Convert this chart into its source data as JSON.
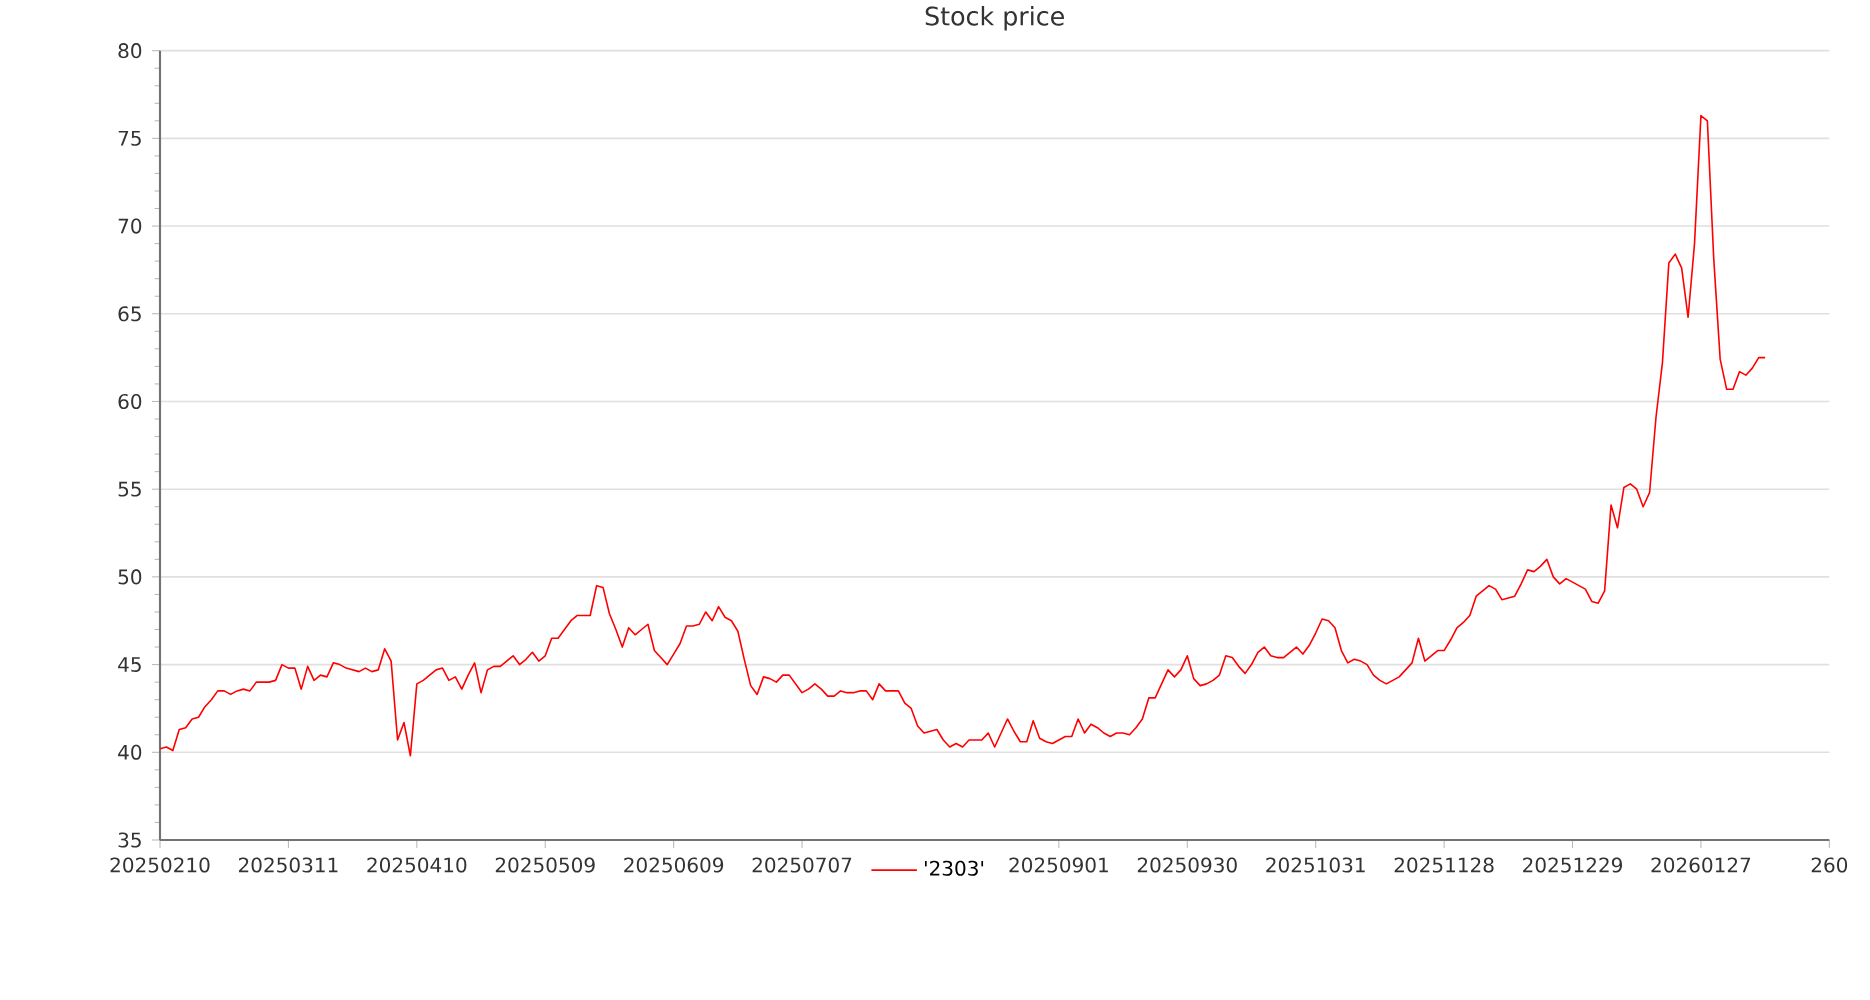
{
  "chart_data": {
    "type": "line",
    "title": "Stock price",
    "categories": [
      "20250210",
      null,
      null,
      null,
      null,
      null,
      null,
      null,
      null,
      null,
      null,
      null,
      null,
      null,
      null,
      null,
      null,
      null,
      null,
      null,
      "20250311",
      null,
      null,
      null,
      null,
      null,
      null,
      null,
      null,
      null,
      null,
      null,
      null,
      null,
      null,
      null,
      null,
      null,
      null,
      null,
      "20250410",
      null,
      null,
      null,
      null,
      null,
      null,
      null,
      null,
      null,
      null,
      null,
      null,
      null,
      null,
      null,
      null,
      null,
      null,
      null,
      "20250509",
      null,
      null,
      null,
      null,
      null,
      null,
      null,
      null,
      null,
      null,
      null,
      null,
      null,
      null,
      null,
      null,
      null,
      null,
      null,
      "20250609",
      null,
      null,
      null,
      null,
      null,
      null,
      null,
      null,
      null,
      null,
      null,
      null,
      null,
      null,
      null,
      null,
      null,
      null,
      null,
      "20250707",
      null,
      null,
      null,
      null,
      null,
      null,
      null,
      null,
      null,
      null,
      null,
      null,
      null,
      null,
      null,
      null,
      null,
      null,
      null,
      null,
      null,
      null,
      null,
      null,
      null,
      null,
      null,
      null,
      null,
      null,
      null,
      null,
      null,
      null,
      null,
      null,
      null,
      null,
      null,
      "20250901",
      null,
      null,
      null,
      null,
      null,
      null,
      null,
      null,
      null,
      null,
      null,
      null,
      null,
      null,
      null,
      null,
      null,
      null,
      null,
      "20250930",
      null,
      null,
      null,
      null,
      null,
      null,
      null,
      null,
      null,
      null,
      null,
      null,
      null,
      null,
      null,
      null,
      null,
      null,
      null,
      "20251031",
      null,
      null,
      null,
      null,
      null,
      null,
      null,
      null,
      null,
      null,
      null,
      null,
      null,
      null,
      null,
      null,
      null,
      null,
      null,
      "20251128",
      null,
      null,
      null,
      null,
      null,
      null,
      null,
      null,
      null,
      null,
      null,
      null,
      null,
      null,
      null,
      null,
      null,
      null,
      null,
      "20251229",
      null,
      null,
      null,
      null,
      null,
      null,
      null,
      null,
      null,
      null,
      null,
      null,
      null,
      null,
      null,
      null,
      null,
      null,
      null,
      "20260127",
      null,
      null,
      null,
      null,
      null,
      null,
      null,
      null,
      null,
      null,
      null,
      null,
      null,
      null,
      null,
      null,
      null,
      null,
      null,
      "260"
    ],
    "series": [
      {
        "name": "'2303'",
        "color": "#ff0000",
        "values": [
          40.2,
          40.3,
          40.1,
          41.3,
          41.4,
          41.9,
          42.0,
          42.6,
          43.0,
          43.5,
          43.5,
          43.3,
          43.5,
          43.6,
          43.5,
          44.0,
          44.0,
          44.0,
          44.1,
          45.0,
          44.8,
          44.8,
          43.6,
          44.9,
          44.1,
          44.4,
          44.3,
          45.1,
          45.0,
          44.8,
          44.7,
          44.6,
          44.8,
          44.6,
          44.7,
          45.9,
          45.2,
          40.7,
          41.7,
          39.8,
          43.9,
          44.1,
          44.4,
          44.7,
          44.8,
          44.1,
          44.3,
          43.6,
          44.4,
          45.1,
          43.4,
          44.7,
          44.9,
          44.9,
          45.2,
          45.5,
          45.0,
          45.3,
          45.7,
          45.2,
          45.5,
          46.5,
          46.5,
          47.0,
          47.5,
          47.8,
          47.8,
          47.8,
          49.5,
          49.4,
          47.9,
          47.0,
          46.0,
          47.1,
          46.7,
          47.0,
          47.3,
          45.8,
          45.4,
          45.0,
          45.6,
          46.2,
          47.2,
          47.2,
          47.3,
          48.0,
          47.5,
          48.3,
          47.7,
          47.5,
          46.9,
          45.3,
          43.8,
          43.3,
          44.3,
          44.2,
          44.0,
          44.4,
          44.4,
          43.9,
          43.4,
          43.6,
          43.9,
          43.6,
          43.2,
          43.2,
          43.5,
          43.4,
          43.4,
          43.5,
          43.5,
          43.0,
          43.9,
          43.5,
          43.5,
          43.5,
          42.8,
          42.5,
          41.5,
          41.1,
          41.2,
          41.3,
          40.7,
          40.3,
          40.5,
          40.3,
          40.7,
          40.7,
          40.7,
          41.1,
          40.3,
          41.1,
          41.9,
          41.2,
          40.6,
          40.6,
          41.8,
          40.8,
          40.6,
          40.5,
          40.7,
          40.9,
          40.9,
          41.9,
          41.1,
          41.6,
          41.4,
          41.1,
          40.9,
          41.1,
          41.1,
          41.0,
          41.4,
          41.9,
          43.1,
          43.1,
          43.9,
          44.7,
          44.3,
          44.7,
          45.5,
          44.2,
          43.8,
          43.9,
          44.1,
          44.4,
          45.5,
          45.4,
          44.9,
          44.5,
          45.0,
          45.7,
          46.0,
          45.5,
          45.4,
          45.4,
          45.7,
          46.0,
          45.6,
          46.1,
          46.8,
          47.6,
          47.5,
          47.1,
          45.8,
          45.1,
          45.3,
          45.2,
          45.0,
          44.4,
          44.1,
          43.9,
          44.1,
          44.3,
          44.7,
          45.1,
          46.5,
          45.2,
          45.5,
          45.8,
          45.8,
          46.4,
          47.1,
          47.4,
          47.8,
          48.9,
          49.2,
          49.5,
          49.3,
          48.7,
          48.8,
          48.9,
          49.6,
          50.4,
          50.3,
          50.6,
          51.0,
          50.0,
          49.6,
          49.9,
          49.7,
          49.5,
          49.3,
          48.6,
          48.5,
          49.2,
          54.1,
          52.8,
          55.1,
          55.3,
          55.0,
          54.0,
          54.8,
          59.1,
          62.2,
          67.9,
          68.4,
          67.6,
          64.8,
          69.0,
          76.3,
          76.0,
          68.1,
          62.4,
          60.7,
          60.7,
          61.7,
          61.5,
          61.9,
          62.5,
          62.5,
          null,
          null,
          null,
          null,
          null,
          null,
          null,
          null,
          null,
          null
        ]
      }
    ],
    "ylim": [
      35,
      80
    ],
    "yticks": [
      35,
      40,
      45,
      50,
      55,
      60,
      65,
      70,
      75,
      80
    ],
    "grid": "y",
    "legend": "bottom",
    "marker": "none",
    "line_style": "solid"
  }
}
